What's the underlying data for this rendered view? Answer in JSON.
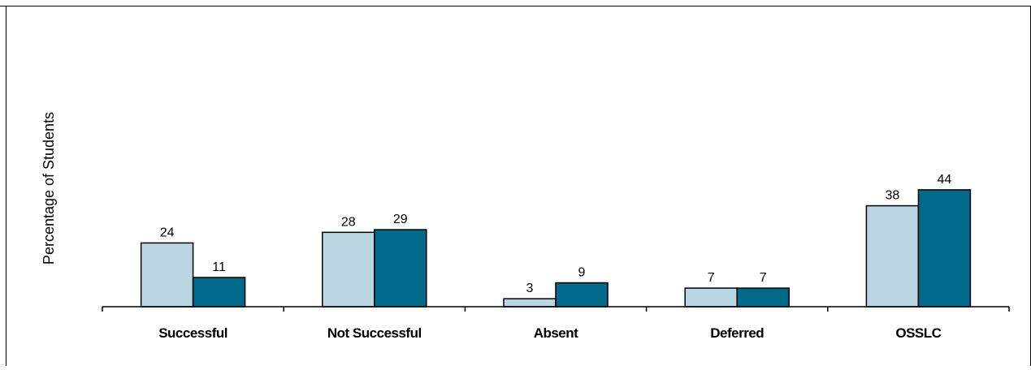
{
  "chart_data": {
    "type": "bar",
    "title": "",
    "xlabel": "",
    "ylabel": "Percentage of Students",
    "categories": [
      "Successful",
      "Not Successful",
      "Absent",
      "Deferred",
      "OSSLC"
    ],
    "series": [
      {
        "values": [
          24,
          28,
          3,
          7,
          38
        ],
        "color": "#b9d6e2"
      },
      {
        "values": [
          11,
          29,
          9,
          7,
          44
        ],
        "color": "#006a8b"
      }
    ],
    "ylim": [
      0,
      113
    ],
    "grid": false,
    "legend": "none",
    "bar_outline_color": "#000000"
  }
}
